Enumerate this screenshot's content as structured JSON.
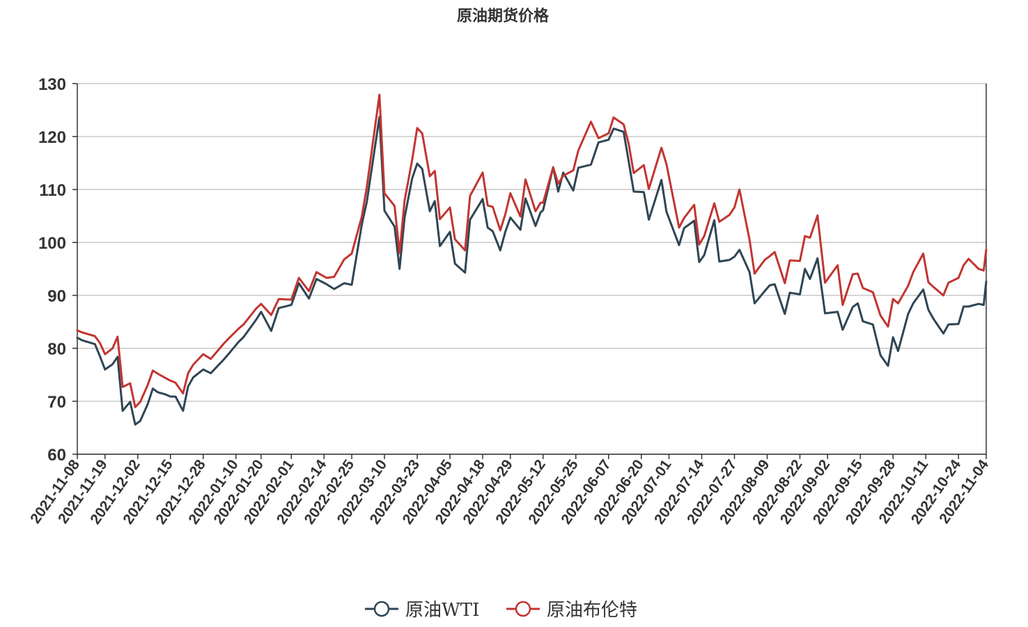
{
  "chart_data": {
    "type": "line",
    "title": "原油期货价格",
    "xlabel": "",
    "ylabel": "",
    "ylim": [
      60,
      130
    ],
    "yticks": [
      60,
      70,
      80,
      90,
      100,
      110,
      120,
      130
    ],
    "xlim": [
      "2021-11-08",
      "2022-11-04"
    ],
    "xticks": [
      "2021-11-08",
      "2021-11-19",
      "2021-12-02",
      "2021-12-15",
      "2021-12-28",
      "2022-01-10",
      "2022-01-20",
      "2022-02-01",
      "2022-02-14",
      "2022-02-25",
      "2022-03-10",
      "2022-03-23",
      "2022-04-05",
      "2022-04-18",
      "2022-04-29",
      "2022-05-12",
      "2022-05-25",
      "2022-06-07",
      "2022-06-20",
      "2022-07-01",
      "2022-07-14",
      "2022-07-27",
      "2022-08-09",
      "2022-08-22",
      "2022-09-02",
      "2022-09-15",
      "2022-09-28",
      "2022-10-11",
      "2022-10-24",
      "2022-11-04"
    ],
    "grid": true,
    "legend_position": "bottom-center",
    "series": [
      {
        "name": "原油WTI",
        "color": "#2f4554",
        "points": [
          [
            "2021-11-08",
            82
          ],
          [
            "2021-11-10",
            81.5
          ],
          [
            "2021-11-15",
            80.8
          ],
          [
            "2021-11-17",
            78.5
          ],
          [
            "2021-11-19",
            76
          ],
          [
            "2021-11-22",
            77
          ],
          [
            "2021-11-24",
            78.4
          ],
          [
            "2021-11-26",
            68.2
          ],
          [
            "2021-11-29",
            69.9
          ],
          [
            "2021-12-01",
            65.6
          ],
          [
            "2021-12-03",
            66.3
          ],
          [
            "2021-12-06",
            69.5
          ],
          [
            "2021-12-08",
            72.4
          ],
          [
            "2021-12-10",
            71.7
          ],
          [
            "2021-12-13",
            71.3
          ],
          [
            "2021-12-15",
            70.9
          ],
          [
            "2021-12-17",
            70.9
          ],
          [
            "2021-12-20",
            68.2
          ],
          [
            "2021-12-22",
            72.8
          ],
          [
            "2021-12-24",
            74.5
          ],
          [
            "2021-12-28",
            76
          ],
          [
            "2021-12-31",
            75.3
          ],
          [
            "2022-01-05",
            77.8
          ],
          [
            "2022-01-07",
            78.9
          ],
          [
            "2022-01-11",
            81.2
          ],
          [
            "2022-01-13",
            82.1
          ],
          [
            "2022-01-18",
            85.4
          ],
          [
            "2022-01-20",
            86.9
          ],
          [
            "2022-01-24",
            83.3
          ],
          [
            "2022-01-27",
            87.6
          ],
          [
            "2022-02-01",
            88.2
          ],
          [
            "2022-02-04",
            92.3
          ],
          [
            "2022-02-08",
            89.4
          ],
          [
            "2022-02-11",
            93.1
          ],
          [
            "2022-02-15",
            92.1
          ],
          [
            "2022-02-18",
            91.2
          ],
          [
            "2022-02-22",
            92.3
          ],
          [
            "2022-02-25",
            92
          ],
          [
            "2022-03-01",
            103.4
          ],
          [
            "2022-03-03",
            107.7
          ],
          [
            "2022-03-08",
            123.7
          ],
          [
            "2022-03-10",
            106.0
          ],
          [
            "2022-03-14",
            103.0
          ],
          [
            "2022-03-16",
            95.0
          ],
          [
            "2022-03-18",
            104.7
          ],
          [
            "2022-03-21",
            112.1
          ],
          [
            "2022-03-23",
            114.9
          ],
          [
            "2022-03-25",
            113.9
          ],
          [
            "2022-03-28",
            105.9
          ],
          [
            "2022-03-30",
            107.8
          ],
          [
            "2022-04-01",
            99.3
          ],
          [
            "2022-04-05",
            102.0
          ],
          [
            "2022-04-07",
            96.0
          ],
          [
            "2022-04-11",
            94.3
          ],
          [
            "2022-04-13",
            104.3
          ],
          [
            "2022-04-18",
            108.2
          ],
          [
            "2022-04-20",
            102.8
          ],
          [
            "2022-04-22",
            102.1
          ],
          [
            "2022-04-25",
            98.5
          ],
          [
            "2022-04-27",
            102.0
          ],
          [
            "2022-04-29",
            104.7
          ],
          [
            "2022-05-03",
            102.4
          ],
          [
            "2022-05-05",
            108.3
          ],
          [
            "2022-05-09",
            103.1
          ],
          [
            "2022-05-11",
            105.7
          ],
          [
            "2022-05-12",
            106.1
          ],
          [
            "2022-05-16",
            114.2
          ],
          [
            "2022-05-18",
            109.6
          ],
          [
            "2022-05-20",
            113.2
          ],
          [
            "2022-05-24",
            109.8
          ],
          [
            "2022-05-26",
            114.1
          ],
          [
            "2022-05-31",
            114.7
          ],
          [
            "2022-06-03",
            118.9
          ],
          [
            "2022-06-07",
            119.4
          ],
          [
            "2022-06-09",
            121.5
          ],
          [
            "2022-06-13",
            120.9
          ],
          [
            "2022-06-15",
            115.3
          ],
          [
            "2022-06-17",
            109.6
          ],
          [
            "2022-06-21",
            109.5
          ],
          [
            "2022-06-23",
            104.3
          ],
          [
            "2022-06-28",
            111.8
          ],
          [
            "2022-06-30",
            105.8
          ],
          [
            "2022-07-05",
            99.5
          ],
          [
            "2022-07-07",
            102.7
          ],
          [
            "2022-07-11",
            104.1
          ],
          [
            "2022-07-13",
            96.3
          ],
          [
            "2022-07-15",
            97.6
          ],
          [
            "2022-07-19",
            104.2
          ],
          [
            "2022-07-21",
            96.4
          ],
          [
            "2022-07-25",
            96.7
          ],
          [
            "2022-07-27",
            97.3
          ],
          [
            "2022-07-29",
            98.6
          ],
          [
            "2022-08-02",
            94.4
          ],
          [
            "2022-08-04",
            88.5
          ],
          [
            "2022-08-08",
            90.8
          ],
          [
            "2022-08-10",
            91.9
          ],
          [
            "2022-08-12",
            92.1
          ],
          [
            "2022-08-16",
            86.5
          ],
          [
            "2022-08-18",
            90.5
          ],
          [
            "2022-08-22",
            90.2
          ],
          [
            "2022-08-24",
            95.0
          ],
          [
            "2022-08-26",
            93.1
          ],
          [
            "2022-08-29",
            97.0
          ],
          [
            "2022-09-01",
            86.6
          ],
          [
            "2022-09-06",
            86.9
          ],
          [
            "2022-09-08",
            83.5
          ],
          [
            "2022-09-12",
            87.8
          ],
          [
            "2022-09-14",
            88.5
          ],
          [
            "2022-09-16",
            85.1
          ],
          [
            "2022-09-20",
            84.5
          ],
          [
            "2022-09-23",
            78.7
          ],
          [
            "2022-09-26",
            76.7
          ],
          [
            "2022-09-28",
            82.1
          ],
          [
            "2022-09-30",
            79.5
          ],
          [
            "2022-10-04",
            86.5
          ],
          [
            "2022-10-06",
            88.5
          ],
          [
            "2022-10-10",
            91.1
          ],
          [
            "2022-10-12",
            87.3
          ],
          [
            "2022-10-14",
            85.6
          ],
          [
            "2022-10-18",
            82.8
          ],
          [
            "2022-10-20",
            84.5
          ],
          [
            "2022-10-24",
            84.6
          ],
          [
            "2022-10-26",
            87.9
          ],
          [
            "2022-10-28",
            87.9
          ],
          [
            "2022-11-01",
            88.4
          ],
          [
            "2022-11-03",
            88.2
          ],
          [
            "2022-11-04",
            92.6
          ]
        ]
      },
      {
        "name": "原油布伦特",
        "color": "#c23531",
        "points": [
          [
            "2021-11-08",
            83.4
          ],
          [
            "2021-11-10",
            83
          ],
          [
            "2021-11-15",
            82.3
          ],
          [
            "2021-11-17",
            81
          ],
          [
            "2021-11-19",
            78.9
          ],
          [
            "2021-11-22",
            80
          ],
          [
            "2021-11-24",
            82.2
          ],
          [
            "2021-11-26",
            72.7
          ],
          [
            "2021-11-29",
            73.4
          ],
          [
            "2021-12-01",
            68.9
          ],
          [
            "2021-12-03",
            69.9
          ],
          [
            "2021-12-06",
            73.1
          ],
          [
            "2021-12-08",
            75.8
          ],
          [
            "2021-12-10",
            75.2
          ],
          [
            "2021-12-13",
            74.4
          ],
          [
            "2021-12-15",
            73.9
          ],
          [
            "2021-12-17",
            73.5
          ],
          [
            "2021-12-20",
            71.5
          ],
          [
            "2021-12-22",
            75.3
          ],
          [
            "2021-12-24",
            76.9
          ],
          [
            "2021-12-28",
            78.9
          ],
          [
            "2021-12-31",
            78.0
          ],
          [
            "2022-01-05",
            80.8
          ],
          [
            "2022-01-07",
            81.8
          ],
          [
            "2022-01-11",
            83.7
          ],
          [
            "2022-01-13",
            84.5
          ],
          [
            "2022-01-18",
            87.5
          ],
          [
            "2022-01-20",
            88.4
          ],
          [
            "2022-01-24",
            86.3
          ],
          [
            "2022-01-27",
            89.3
          ],
          [
            "2022-02-01",
            89.2
          ],
          [
            "2022-02-04",
            93.3
          ],
          [
            "2022-02-08",
            90.8
          ],
          [
            "2022-02-11",
            94.4
          ],
          [
            "2022-02-15",
            93.3
          ],
          [
            "2022-02-18",
            93.5
          ],
          [
            "2022-02-22",
            96.8
          ],
          [
            "2022-02-25",
            97.9
          ],
          [
            "2022-03-01",
            104.9
          ],
          [
            "2022-03-03",
            110.5
          ],
          [
            "2022-03-08",
            127.9
          ],
          [
            "2022-03-10",
            109.3
          ],
          [
            "2022-03-14",
            106.9
          ],
          [
            "2022-03-16",
            98.0
          ],
          [
            "2022-03-18",
            107.9
          ],
          [
            "2022-03-21",
            115.6
          ],
          [
            "2022-03-23",
            121.6
          ],
          [
            "2022-03-25",
            120.6
          ],
          [
            "2022-03-28",
            112.5
          ],
          [
            "2022-03-30",
            113.5
          ],
          [
            "2022-04-01",
            104.4
          ],
          [
            "2022-04-05",
            106.6
          ],
          [
            "2022-04-07",
            100.6
          ],
          [
            "2022-04-11",
            98.5
          ],
          [
            "2022-04-13",
            108.8
          ],
          [
            "2022-04-18",
            113.2
          ],
          [
            "2022-04-20",
            107.0
          ],
          [
            "2022-04-22",
            106.7
          ],
          [
            "2022-04-25",
            102.3
          ],
          [
            "2022-04-27",
            105.3
          ],
          [
            "2022-04-29",
            109.3
          ],
          [
            "2022-05-03",
            104.9
          ],
          [
            "2022-05-05",
            111.9
          ],
          [
            "2022-05-09",
            105.9
          ],
          [
            "2022-05-11",
            107.5
          ],
          [
            "2022-05-12",
            107.5
          ],
          [
            "2022-05-16",
            114.2
          ],
          [
            "2022-05-18",
            111.1
          ],
          [
            "2022-05-20",
            112.6
          ],
          [
            "2022-05-24",
            113.6
          ],
          [
            "2022-05-26",
            117.4
          ],
          [
            "2022-05-31",
            122.8
          ],
          [
            "2022-06-03",
            119.7
          ],
          [
            "2022-06-07",
            120.6
          ],
          [
            "2022-06-09",
            123.6
          ],
          [
            "2022-06-13",
            122.3
          ],
          [
            "2022-06-15",
            118.6
          ],
          [
            "2022-06-17",
            113.1
          ],
          [
            "2022-06-21",
            114.6
          ],
          [
            "2022-06-23",
            110.1
          ],
          [
            "2022-06-28",
            117.9
          ],
          [
            "2022-06-30",
            114.8
          ],
          [
            "2022-07-05",
            102.8
          ],
          [
            "2022-07-07",
            104.6
          ],
          [
            "2022-07-11",
            107.1
          ],
          [
            "2022-07-13",
            99.6
          ],
          [
            "2022-07-15",
            101.2
          ],
          [
            "2022-07-19",
            107.4
          ],
          [
            "2022-07-21",
            103.9
          ],
          [
            "2022-07-25",
            105.2
          ],
          [
            "2022-07-27",
            106.6
          ],
          [
            "2022-07-29",
            110.0
          ],
          [
            "2022-08-02",
            100.5
          ],
          [
            "2022-08-04",
            94.1
          ],
          [
            "2022-08-08",
            96.7
          ],
          [
            "2022-08-10",
            97.4
          ],
          [
            "2022-08-12",
            98.2
          ],
          [
            "2022-08-16",
            92.3
          ],
          [
            "2022-08-18",
            96.6
          ],
          [
            "2022-08-22",
            96.5
          ],
          [
            "2022-08-24",
            101.2
          ],
          [
            "2022-08-26",
            100.9
          ],
          [
            "2022-08-29",
            105.1
          ],
          [
            "2022-09-01",
            92.4
          ],
          [
            "2022-09-06",
            95.7
          ],
          [
            "2022-09-08",
            88.2
          ],
          [
            "2022-09-12",
            94.0
          ],
          [
            "2022-09-14",
            94.1
          ],
          [
            "2022-09-16",
            91.4
          ],
          [
            "2022-09-20",
            90.6
          ],
          [
            "2022-09-23",
            86.2
          ],
          [
            "2022-09-26",
            84.1
          ],
          [
            "2022-09-28",
            89.3
          ],
          [
            "2022-09-30",
            88.5
          ],
          [
            "2022-10-04",
            91.8
          ],
          [
            "2022-10-06",
            94.4
          ],
          [
            "2022-10-10",
            97.9
          ],
          [
            "2022-10-12",
            92.5
          ],
          [
            "2022-10-14",
            91.6
          ],
          [
            "2022-10-18",
            90.0
          ],
          [
            "2022-10-20",
            92.4
          ],
          [
            "2022-10-24",
            93.3
          ],
          [
            "2022-10-26",
            95.7
          ],
          [
            "2022-10-28",
            96.9
          ],
          [
            "2022-11-01",
            95.0
          ],
          [
            "2022-11-03",
            94.7
          ],
          [
            "2022-11-04",
            98.6
          ]
        ]
      }
    ]
  }
}
